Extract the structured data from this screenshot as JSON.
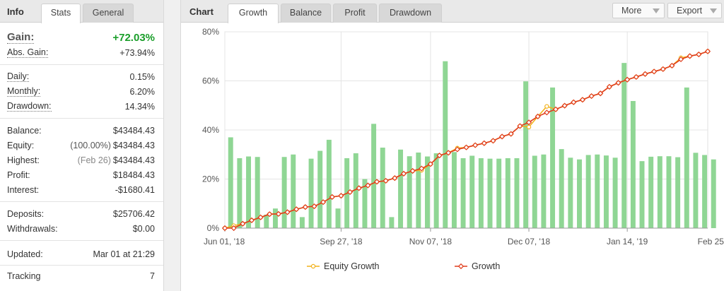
{
  "info_panel": {
    "title": "Info",
    "tabs": [
      {
        "label": "Stats",
        "active": true
      },
      {
        "label": "General",
        "active": false
      }
    ],
    "gain": {
      "label": "Gain:",
      "value": "+72.03%"
    },
    "abs_gain": {
      "label": "Abs. Gain:",
      "value": "+73.94%"
    },
    "daily": {
      "label": "Daily:",
      "value": "0.15%"
    },
    "monthly": {
      "label": "Monthly:",
      "value": "6.20%"
    },
    "drawdown": {
      "label": "Drawdown:",
      "value": "14.34%"
    },
    "balance": {
      "label": "Balance:",
      "value": "$43484.43"
    },
    "equity": {
      "label": "Equity:",
      "sub": "(100.00%)",
      "value": "$43484.43"
    },
    "highest": {
      "label": "Highest:",
      "sub": "(Feb 26)",
      "value": "$43484.43"
    },
    "profit": {
      "label": "Profit:",
      "value": "$18484.43"
    },
    "interest": {
      "label": "Interest:",
      "value": "-$1680.41"
    },
    "deposits": {
      "label": "Deposits:",
      "value": "$25706.42"
    },
    "withdrawals": {
      "label": "Withdrawals:",
      "value": "$0.00"
    },
    "updated": {
      "label": "Updated:",
      "value": "Mar 01 at 21:29"
    },
    "tracking": {
      "label": "Tracking",
      "value": "7"
    }
  },
  "chart_panel": {
    "title": "Chart",
    "tabs": [
      {
        "label": "Growth",
        "active": true
      },
      {
        "label": "Balance",
        "active": false
      },
      {
        "label": "Profit",
        "active": false
      },
      {
        "label": "Drawdown",
        "active": false
      }
    ],
    "more_label": "More",
    "export_label": "Export"
  },
  "colors": {
    "bar": "#8fd694",
    "growth_line": "#e03c1c",
    "equity_line": "#f2b21b",
    "positive": "#1a9e2a"
  },
  "chart_data": {
    "type": "bar",
    "ylim": [
      0,
      80
    ],
    "y_ticks": [
      "0%",
      "20%",
      "40%",
      "60%",
      "80%"
    ],
    "x_tick_labels": [
      "Jun 01, '18",
      "Sep 27, '18",
      "Nov 07, '18",
      "Dec 07, '18",
      "Jan 14, '19",
      "Feb 25, '19"
    ],
    "x_tick_index": [
      0,
      13,
      23,
      34,
      45,
      56
    ],
    "bars": [
      37,
      28.5,
      29.2,
      29,
      5.5,
      8,
      29,
      30,
      4.5,
      28.3,
      31.5,
      36,
      8,
      28.5,
      30.5,
      20,
      42.5,
      32.8,
      4.5,
      32,
      29.3,
      30.8,
      29.2,
      30.5,
      68,
      31,
      28.5,
      29.5,
      28.5,
      28.3,
      28.3,
      28.5,
      28.5,
      59.8,
      29.5,
      30,
      57.3,
      32.2,
      28.7,
      28,
      29.8,
      30,
      29.6,
      28.7,
      67.3,
      51.8,
      27.3,
      29.1,
      29.3,
      29.3,
      28.9,
      57.3,
      30.7,
      29.8,
      28
    ],
    "series": [
      {
        "name": "Growth",
        "values": [
          0,
          0,
          1.8,
          3.2,
          4.4,
          5.7,
          5.8,
          6.5,
          7.7,
          8.6,
          8.9,
          10.6,
          12.7,
          13.2,
          14.7,
          16.3,
          17.4,
          18.9,
          19.3,
          20.4,
          22.2,
          23.3,
          24.3,
          26.1,
          29.6,
          30.7,
          32.1,
          32.9,
          33.8,
          34.6,
          35.6,
          37.3,
          38.4,
          41.6,
          43.1,
          45.5,
          47.1,
          48.4,
          49.9,
          51.3,
          52.3,
          53.8,
          54.9,
          57.6,
          59.2,
          60.5,
          61.6,
          62.8,
          63.8,
          64.8,
          66.2,
          68.8,
          70.1,
          70.8,
          72.03
        ]
      },
      {
        "name": "Equity Growth",
        "values": [
          0,
          1,
          1.8,
          3.2,
          4.4,
          5.7,
          5.8,
          6.5,
          7.7,
          8.6,
          8.9,
          10.6,
          12.7,
          13.2,
          14.7,
          16.3,
          17.4,
          18.9,
          19.3,
          20.4,
          22.2,
          23.3,
          23.6,
          26.1,
          29.6,
          30.7,
          32.6,
          32.9,
          33.8,
          34.6,
          35.6,
          37.3,
          38.4,
          41.6,
          41.2,
          45.5,
          49.6,
          48.4,
          49.9,
          51.3,
          52.3,
          53.8,
          54.9,
          57.6,
          59.2,
          60.5,
          61.6,
          62.8,
          63.8,
          64.8,
          66.2,
          69.4,
          70.1,
          70.8,
          72.03
        ]
      }
    ],
    "legend_position": "bottom",
    "grid": true
  }
}
